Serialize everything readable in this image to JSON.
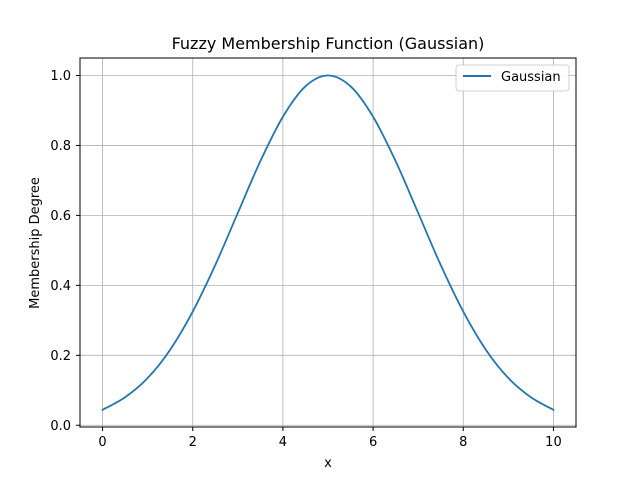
{
  "chart_data": {
    "type": "line",
    "title": "Fuzzy Membership Function (Gaussian)",
    "xlabel": "x",
    "ylabel": "Membership Degree",
    "xlim": [
      -0.5,
      10.5
    ],
    "ylim": [
      -0.005,
      1.05
    ],
    "xticks": [
      0,
      2,
      4,
      6,
      8,
      10
    ],
    "yticks": [
      0.0,
      0.2,
      0.4,
      0.6,
      0.8,
      1.0
    ],
    "xtick_labels": [
      "0",
      "2",
      "4",
      "6",
      "8",
      "10"
    ],
    "ytick_labels": [
      "0.0",
      "0.2",
      "0.4",
      "0.6",
      "0.8",
      "1.0"
    ],
    "grid": true,
    "legend": {
      "position": "top-right"
    },
    "series": [
      {
        "name": "Gaussian",
        "color": "#1f77b4",
        "x": [
          0,
          0.5,
          1,
          1.5,
          2,
          2.5,
          3,
          3.5,
          4,
          4.5,
          5,
          5.5,
          6,
          6.5,
          7,
          7.5,
          8,
          8.5,
          9,
          9.5,
          10
        ],
        "y": [
          0.044,
          0.08,
          0.135,
          0.216,
          0.325,
          0.458,
          0.607,
          0.755,
          0.882,
          0.969,
          1.0,
          0.969,
          0.882,
          0.755,
          0.607,
          0.458,
          0.325,
          0.216,
          0.135,
          0.08,
          0.044
        ]
      }
    ]
  }
}
